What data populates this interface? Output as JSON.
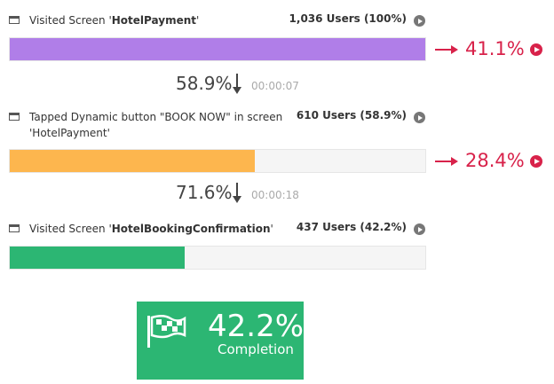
{
  "steps": [
    {
      "label_prefix": "Visited Screen '",
      "label_name": "HotelPayment",
      "label_suffix": "'",
      "users_label": "1,036 Users (100%)",
      "share": 100,
      "color": "#b07ee8",
      "dropoff": "41.1%"
    },
    {
      "label_prefix": "Tapped Dynamic button \"BOOK NOW\" in screen 'HotelPayment'",
      "users_label": "610 Users (58.9%)",
      "share": 58.9,
      "color": "#fdb64e",
      "dropoff": "28.4%"
    },
    {
      "label_prefix": "Visited Screen '",
      "label_name": "HotelBookingConfirmation",
      "label_suffix": "'",
      "users_label": "437 Users (42.2%)",
      "share": 42.2,
      "color": "#2cb673"
    }
  ],
  "transitions": [
    {
      "rate": "58.9%",
      "time": "00:00:07"
    },
    {
      "rate": "71.6%",
      "time": "00:00:18"
    }
  ],
  "completion": {
    "value": "42.2%",
    "label": "Completion"
  }
}
